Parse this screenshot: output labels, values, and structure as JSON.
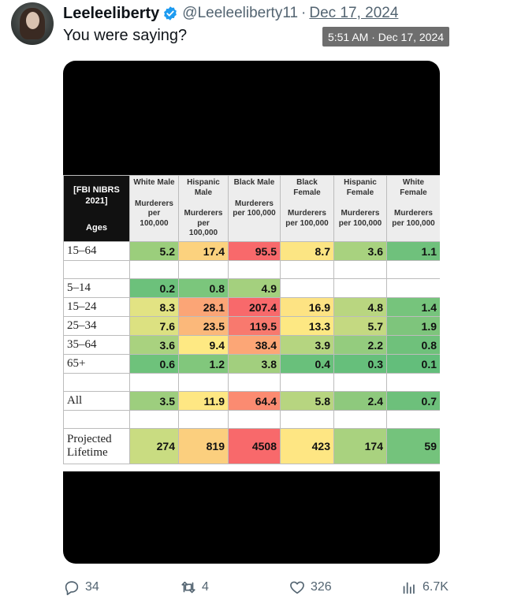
{
  "tweet": {
    "author_name": "Leeleeliberty",
    "handle": "@Leeleeliberty11",
    "separator": "·",
    "date": "Dec 17, 2024",
    "tooltip": "5:51 AM · Dec 17, 2024",
    "text": "You were saying?"
  },
  "actions": {
    "replies": "34",
    "reposts": "4",
    "likes": "326",
    "views": "6.7K"
  },
  "colors": {
    "verified": "#1d9bf0",
    "action_icon": "#536471",
    "heat_green": "#63be7b",
    "heat_yellow": "#ffeb84",
    "heat_red": "#f8696b"
  },
  "table": {
    "corner": "[FBI NIBRS 2021]",
    "corner_sub": "Ages",
    "columns": [
      {
        "title": "White Male",
        "sub": "Murderers per 100,000"
      },
      {
        "title": "Hispanic Male",
        "sub": "Murderers per 100,000"
      },
      {
        "title": "Black Male",
        "sub": "Murderers per 100,000"
      },
      {
        "title": "Black Female",
        "sub": "Murderers per 100,000"
      },
      {
        "title": "Hispanic Female",
        "sub": "Murderers per 100,000"
      },
      {
        "title": "White Female",
        "sub": "Murderers per 100,000"
      }
    ],
    "rows": [
      {
        "label": "15–64",
        "values": [
          "5.2",
          "17.4",
          "95.5",
          "8.7",
          "3.6",
          "1.1"
        ]
      },
      {
        "label": "",
        "values": [
          "",
          "",
          "",
          "",
          "",
          ""
        ]
      },
      {
        "label": "5–14",
        "values": [
          "0.2",
          "0.8",
          "4.9",
          "",
          "",
          ""
        ]
      },
      {
        "label": "15–24",
        "values": [
          "8.3",
          "28.1",
          "207.4",
          "16.9",
          "4.8",
          "1.4"
        ]
      },
      {
        "label": "25–34",
        "values": [
          "7.6",
          "23.5",
          "119.5",
          "13.3",
          "5.7",
          "1.9"
        ]
      },
      {
        "label": "35–64",
        "values": [
          "3.6",
          "9.4",
          "38.4",
          "3.9",
          "2.2",
          "0.8"
        ]
      },
      {
        "label": "65+",
        "values": [
          "0.6",
          "1.2",
          "3.8",
          "0.4",
          "0.3",
          "0.1"
        ]
      },
      {
        "label": "",
        "values": [
          "",
          "",
          "",
          "",
          "",
          ""
        ]
      },
      {
        "label": "All",
        "values": [
          "3.5",
          "11.9",
          "64.4",
          "5.8",
          "2.4",
          "0.7"
        ]
      },
      {
        "label": "",
        "values": [
          "",
          "",
          "",
          "",
          "",
          ""
        ]
      },
      {
        "label": "Projected Lifetime",
        "values": [
          "274",
          "819",
          "4508",
          "423",
          "174",
          "59"
        ]
      }
    ],
    "cell_colors": [
      [
        "#9bce7c",
        "#fcd27e",
        "#f8696b",
        "#fce583",
        "#a8d27f",
        "#6fc17c"
      ],
      [
        "",
        "",
        "",
        "",
        "",
        ""
      ],
      [
        "#6cc17b",
        "#7bc67c",
        "#a4d07e",
        "",
        "",
        ""
      ],
      [
        "#e2e383",
        "#fba576",
        "#f8696b",
        "#fde383",
        "#b9d680",
        "#76c47c"
      ],
      [
        "#dce181",
        "#fbb87a",
        "#f8796e",
        "#fde883",
        "#c4d981",
        "#7ec57c"
      ],
      [
        "#a9d27f",
        "#fee983",
        "#fca676",
        "#b5d580",
        "#94cc7e",
        "#6fc17b"
      ],
      [
        "#6ec27b",
        "#81c77c",
        "#a2cf7e",
        "#69c07b",
        "#66bf7b",
        "#63be7b"
      ],
      [
        "",
        "",
        "",
        "",
        "",
        ""
      ],
      [
        "#9dce7e",
        "#fee783",
        "#fb8b71",
        "#b7d580",
        "#8ec97d",
        "#6dc07b"
      ],
      [
        "",
        "",
        "",
        "",
        "",
        ""
      ],
      [
        "#c9dc81",
        "#fbcf7e",
        "#f8696b",
        "#fee683",
        "#a9d27f",
        "#74c37c"
      ]
    ]
  }
}
